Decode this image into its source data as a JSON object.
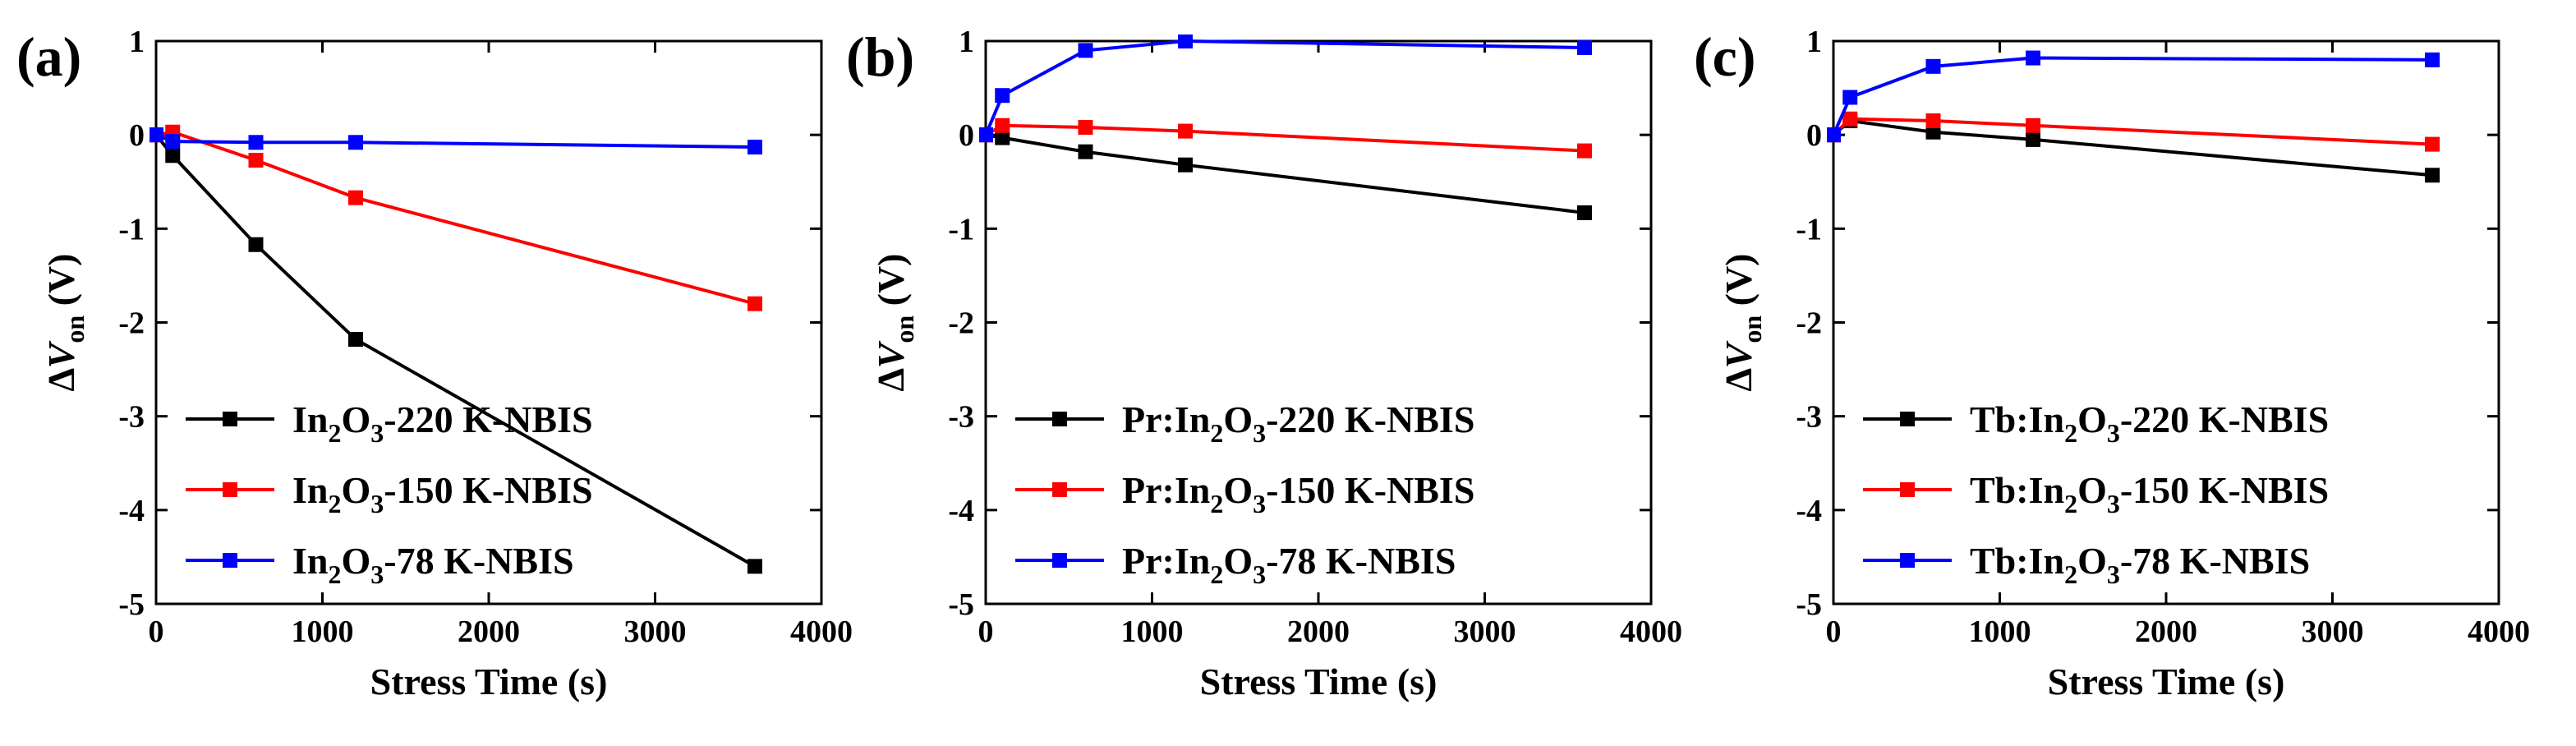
{
  "chart_data": [
    {
      "type": "line",
      "panel_label": "(a)",
      "xlabel": "Stress Time (s)",
      "ylabel_prefix": "∆",
      "ylabel_var": "V",
      "ylabel_sub": "on",
      "ylabel_unit": " (V)",
      "xlim": [
        0,
        4000
      ],
      "ylim": [
        -5,
        1
      ],
      "xticks": [
        0,
        1000,
        2000,
        3000,
        4000
      ],
      "yticks": [
        -5,
        -4,
        -3,
        -2,
        -1,
        0,
        1
      ],
      "legend_position": "bottom-left",
      "series": [
        {
          "name": "In2O3-220 K-NBIS",
          "label_parts": [
            "In",
            "2",
            "O",
            "3",
            "-220 K-NBIS"
          ],
          "color": "#000000",
          "x": [
            0,
            100,
            600,
            1200,
            3600
          ],
          "y": [
            0,
            -0.22,
            -1.17,
            -2.18,
            -4.6
          ]
        },
        {
          "name": "In2O3-150 K-NBIS",
          "label_parts": [
            "In",
            "2",
            "O",
            "3",
            "-150 K-NBIS"
          ],
          "color": "#ff0000",
          "x": [
            0,
            100,
            600,
            1200,
            3600
          ],
          "y": [
            0,
            0.03,
            -0.27,
            -0.67,
            -1.8
          ]
        },
        {
          "name": "In2O3-78 K-NBIS",
          "label_parts": [
            "In",
            "2",
            "O",
            "3",
            "-78 K-NBIS"
          ],
          "color": "#0000ff",
          "x": [
            0,
            100,
            600,
            1200,
            3600
          ],
          "y": [
            0,
            -0.07,
            -0.08,
            -0.08,
            -0.13
          ]
        }
      ]
    },
    {
      "type": "line",
      "panel_label": "(b)",
      "xlabel": "Stress Time (s)",
      "ylabel_prefix": "∆",
      "ylabel_var": "V",
      "ylabel_sub": "on",
      "ylabel_unit": " (V)",
      "xlim": [
        0,
        4000
      ],
      "ylim": [
        -5,
        1
      ],
      "xticks": [
        0,
        1000,
        2000,
        3000,
        4000
      ],
      "yticks": [
        -5,
        -4,
        -3,
        -2,
        -1,
        0,
        1
      ],
      "legend_position": "bottom-left",
      "series": [
        {
          "name": "Pr:In2O3-220 K-NBIS",
          "label_parts": [
            "Pr:In",
            "2",
            "O",
            "3",
            "-220 K-NBIS"
          ],
          "color": "#000000",
          "x": [
            0,
            100,
            600,
            1200,
            3600
          ],
          "y": [
            0,
            -0.03,
            -0.18,
            -0.32,
            -0.83
          ]
        },
        {
          "name": "Pr:In2O3-150 K-NBIS",
          "label_parts": [
            "Pr:In",
            "2",
            "O",
            "3",
            "-150 K-NBIS"
          ],
          "color": "#ff0000",
          "x": [
            0,
            100,
            600,
            1200,
            3600
          ],
          "y": [
            0,
            0.1,
            0.08,
            0.04,
            -0.17
          ]
        },
        {
          "name": "Pr:In2O3-78 K-NBIS",
          "label_parts": [
            "Pr:In",
            "2",
            "O",
            "3",
            "-78 K-NBIS"
          ],
          "color": "#0000ff",
          "x": [
            0,
            100,
            600,
            1200,
            3600
          ],
          "y": [
            0,
            0.42,
            0.9,
            1.0,
            0.93
          ]
        }
      ]
    },
    {
      "type": "line",
      "panel_label": "(c)",
      "xlabel": "Stress Time (s)",
      "ylabel_prefix": "∆",
      "ylabel_var": "V",
      "ylabel_sub": "on",
      "ylabel_unit": " (V)",
      "xlim": [
        0,
        4000
      ],
      "ylim": [
        -5,
        1
      ],
      "xticks": [
        0,
        1000,
        2000,
        3000,
        4000
      ],
      "yticks": [
        -5,
        -4,
        -3,
        -2,
        -1,
        0,
        1
      ],
      "legend_position": "bottom-left",
      "series": [
        {
          "name": "Tb:In2O3-220 K-NBIS",
          "label_parts": [
            "Tb:In",
            "2",
            "O",
            "3",
            "-220 K-NBIS"
          ],
          "color": "#000000",
          "x": [
            0,
            100,
            600,
            1200,
            3600
          ],
          "y": [
            0,
            0.15,
            0.03,
            -0.05,
            -0.43
          ]
        },
        {
          "name": "Tb:In2O3-150 K-NBIS",
          "label_parts": [
            "Tb:In",
            "2",
            "O",
            "3",
            "-150 K-NBIS"
          ],
          "color": "#ff0000",
          "x": [
            0,
            100,
            600,
            1200,
            3600
          ],
          "y": [
            0,
            0.17,
            0.15,
            0.1,
            -0.1
          ]
        },
        {
          "name": "Tb:In2O3-78 K-NBIS",
          "label_parts": [
            "Tb:In",
            "2",
            "O",
            "3",
            "-78 K-NBIS"
          ],
          "color": "#0000ff",
          "x": [
            0,
            100,
            600,
            1200,
            3600
          ],
          "y": [
            0,
            0.4,
            0.73,
            0.82,
            0.8
          ]
        }
      ]
    }
  ]
}
